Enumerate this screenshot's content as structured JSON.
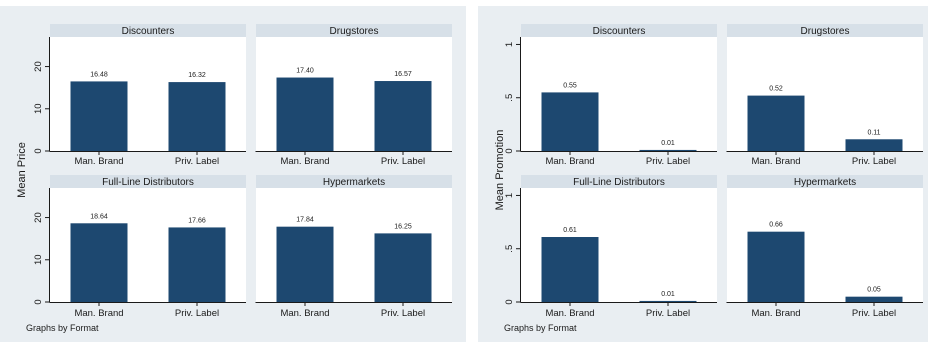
{
  "chart_data": [
    {
      "type": "bar",
      "ylabel": "Mean Price",
      "ylim": [
        0,
        27
      ],
      "yticks": [
        "0",
        "10",
        "20"
      ],
      "ytick_values": [
        0,
        10,
        20
      ],
      "categories": [
        "Man. Brand",
        "Priv. Label"
      ],
      "note": "Graphs by Format",
      "panels": [
        {
          "title": "Discounters",
          "values": [
            16.48,
            16.32
          ],
          "labels": [
            "16.48",
            "16.32"
          ]
        },
        {
          "title": "Drugstores",
          "values": [
            17.4,
            16.57
          ],
          "labels": [
            "17.40",
            "16.57"
          ]
        },
        {
          "title": "Full-Line Distributors",
          "values": [
            18.64,
            17.66
          ],
          "labels": [
            "18.64",
            "17.66"
          ]
        },
        {
          "title": "Hypermarkets",
          "values": [
            17.84,
            16.25
          ],
          "labels": [
            "17.84",
            "16.25"
          ]
        }
      ]
    },
    {
      "type": "bar",
      "ylabel": "Mean Promotion",
      "ylim": [
        0,
        1.07
      ],
      "yticks": [
        "0",
        ".5",
        "1"
      ],
      "ytick_values": [
        0,
        0.5,
        1
      ],
      "categories": [
        "Man. Brand",
        "Priv. Label"
      ],
      "note": "Graphs by Format",
      "panels": [
        {
          "title": "Discounters",
          "values": [
            0.55,
            0.01
          ],
          "labels": [
            "0.55",
            "0.01"
          ]
        },
        {
          "title": "Drugstores",
          "values": [
            0.52,
            0.11
          ],
          "labels": [
            "0.52",
            "0.11"
          ]
        },
        {
          "title": "Full-Line Distributors",
          "values": [
            0.61,
            0.01
          ],
          "labels": [
            "0.61",
            "0.01"
          ]
        },
        {
          "title": "Hypermarkets",
          "values": [
            0.66,
            0.05
          ],
          "labels": [
            "0.66",
            "0.05"
          ]
        }
      ]
    }
  ]
}
